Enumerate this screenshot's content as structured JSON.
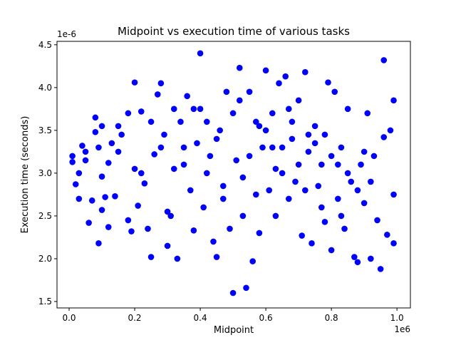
{
  "chart_data": {
    "type": "scatter",
    "title": "Midpoint vs execution time of various tasks",
    "xlabel": "Midpoint",
    "ylabel": "Execution time (seconds)",
    "x_offset_label": "1e6",
    "y_offset_label": "1e-6",
    "color": "#0000ff",
    "xlim": [
      -0.037,
      1.041
    ],
    "ylim": [
      1.425,
      4.54
    ],
    "xticks": [
      {
        "value": 0,
        "label": "0.0"
      },
      0.2,
      0.4,
      0.6,
      0.8,
      {
        "value": 1,
        "label": "1.0"
      }
    ],
    "yticks": [
      1.5,
      {
        "value": 2,
        "label": "2.0"
      },
      2.5,
      {
        "value": 3,
        "label": "3.0"
      },
      3.5,
      {
        "value": 4,
        "label": "4.0"
      },
      4.5
    ],
    "x": [
      0.01,
      0.01,
      0.02,
      0.03,
      0.03,
      0.04,
      0.05,
      0.06,
      0.07,
      0.08,
      0.08,
      0.09,
      0.09,
      0.1,
      0.1,
      0.1,
      0.11,
      0.12,
      0.12,
      0.13,
      0.14,
      0.15,
      0.16,
      0.18,
      0.18,
      0.19,
      0.2,
      0.2,
      0.21,
      0.22,
      0.23,
      0.24,
      0.25,
      0.26,
      0.27,
      0.28,
      0.29,
      0.3,
      0.3,
      0.31,
      0.32,
      0.33,
      0.34,
      0.35,
      0.36,
      0.37,
      0.38,
      0.39,
      0.4,
      0.4,
      0.41,
      0.42,
      0.43,
      0.44,
      0.45,
      0.46,
      0.47,
      0.48,
      0.49,
      0.5,
      0.51,
      0.52,
      0.53,
      0.54,
      0.55,
      0.56,
      0.57,
      0.58,
      0.59,
      0.6,
      0.61,
      0.62,
      0.63,
      0.64,
      0.65,
      0.66,
      0.67,
      0.68,
      0.69,
      0.7,
      0.71,
      0.72,
      0.73,
      0.74,
      0.75,
      0.76,
      0.77,
      0.78,
      0.79,
      0.8,
      0.81,
      0.82,
      0.83,
      0.84,
      0.85,
      0.86,
      0.87,
      0.88,
      0.89,
      0.9,
      0.91,
      0.92,
      0.93,
      0.94,
      0.95,
      0.96,
      0.96,
      0.97,
      0.98,
      0.99,
      0.99,
      0.99,
      0.45,
      0.5,
      0.55,
      0.6,
      0.65,
      0.7,
      0.75,
      0.8,
      0.85,
      0.9,
      0.35,
      0.38,
      0.42,
      0.52,
      0.58,
      0.62,
      0.68,
      0.72,
      0.78,
      0.82,
      0.88,
      0.92,
      0.47,
      0.53,
      0.57,
      0.63,
      0.67,
      0.73,
      0.77,
      0.83,
      0.25,
      0.28,
      0.32,
      0.22,
      0.15,
      0.05
    ],
    "y": [
      3.2,
      3.13,
      2.87,
      3.0,
      2.7,
      3.32,
      3.25,
      2.42,
      2.68,
      3.65,
      3.48,
      3.3,
      2.18,
      2.57,
      3.55,
      2.96,
      2.72,
      2.37,
      3.12,
      3.35,
      2.73,
      3.55,
      3.45,
      2.45,
      3.7,
      2.32,
      4.06,
      3.05,
      2.62,
      3.72,
      2.88,
      2.35,
      2.02,
      3.22,
      3.92,
      4.05,
      3.45,
      2.15,
      2.55,
      2.5,
      3.05,
      2.0,
      3.6,
      3.1,
      3.9,
      2.8,
      2.33,
      3.35,
      4.4,
      3.75,
      2.6,
      3.0,
      3.2,
      2.2,
      2.02,
      3.5,
      2.85,
      3.95,
      2.35,
      1.6,
      3.15,
      4.23,
      2.5,
      1.66,
      3.95,
      1.97,
      3.6,
      2.3,
      3.3,
      4.2,
      2.8,
      3.7,
      2.5,
      4.05,
      3.0,
      4.13,
      2.7,
      3.4,
      2.9,
      3.85,
      2.27,
      4.18,
      3.25,
      2.18,
      3.55,
      2.85,
      3.1,
      2.43,
      4.06,
      2.1,
      3.95,
      2.7,
      3.3,
      2.35,
      3.75,
      2.9,
      2.02,
      1.96,
      3.1,
      2.65,
      3.7,
      2.0,
      3.2,
      2.45,
      1.88,
      4.32,
      3.42,
      2.28,
      3.5,
      2.18,
      3.85,
      2.75,
      3.4,
      3.7,
      3.2,
      3.5,
      3.3,
      3.1,
      3.35,
      3.2,
      3.0,
      3.25,
      3.3,
      3.75,
      3.6,
      3.85,
      3.55,
      3.3,
      3.6,
      2.8,
      3.45,
      3.1,
      2.8,
      2.9,
      2.7,
      2.95,
      2.75,
      3.05,
      3.75,
      3.45,
      2.6,
      2.5,
      3.6,
      3.3,
      3.75,
      3.0,
      3.25,
      3.15
    ]
  }
}
